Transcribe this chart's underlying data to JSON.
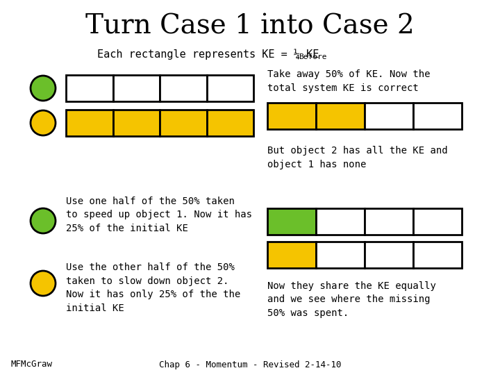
{
  "title": "Turn Case 1 into Case 2",
  "bg_color": "#ffffff",
  "yellow": "#F5C400",
  "green": "#6BBF2A",
  "white_fill": "#ffffff",
  "black": "#000000",
  "text_left_1": "Use one half of the 50% taken\nto speed up object 1. Now it has\n25% of the initial KE",
  "text_left_2": "Use the other half of the 50%\ntaken to slow down object 2.\nNow it has only 25% of the the\ninitial KE",
  "text_right_1": "Take away 50% of KE. Now the\ntotal system KE is correct",
  "text_right_2": "But object 2 has all the KE and\nobject 1 has none",
  "text_right_3": "Now they share the KE equally\nand we see where the missing\n50% was spent.",
  "footer_left": "MFMcGraw",
  "footer_right": "Chap 6 - Momentum - Revised 2-14-10"
}
